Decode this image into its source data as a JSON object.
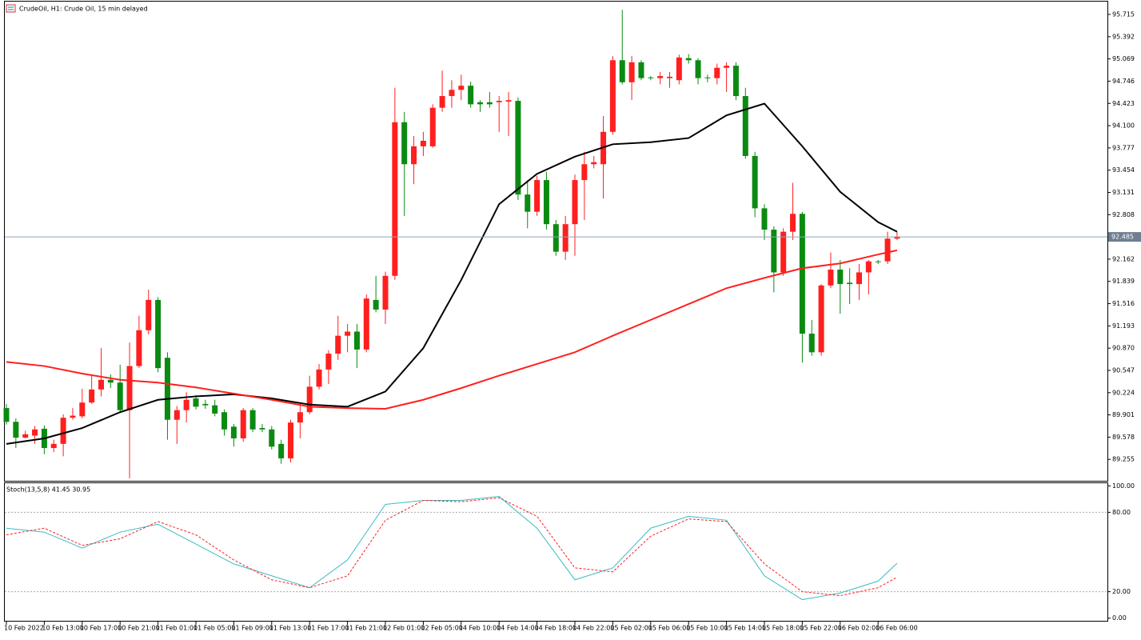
{
  "chart_data": [
    {
      "type": "candlestick",
      "title": "CrudeOil, H1:  Crude Oil, 15 min delayed",
      "categories": [
        "10 Feb 2022",
        null,
        null,
        null,
        "10 Feb 13:00",
        null,
        null,
        null,
        "10 Feb 17:00",
        null,
        null,
        null,
        "10 Feb 21:00",
        null,
        null,
        null,
        "11 Feb 01:00",
        null,
        null,
        null,
        "11 Feb 05:00",
        null,
        null,
        null,
        "11 Feb 09:00",
        null,
        null,
        null,
        "11 Feb 13:00",
        null,
        null,
        null,
        "11 Feb 17:00",
        null,
        null,
        null,
        "11 Feb 21:00",
        null,
        null,
        null,
        "12 Feb 01:00",
        null,
        null,
        null,
        "12 Feb 05:00",
        null,
        null,
        null,
        "14 Feb 10:00",
        null,
        null,
        null,
        "14 Feb 14:00",
        null,
        null,
        null,
        "14 Feb 18:00",
        null,
        null,
        null,
        "14 Feb 22:00",
        null,
        null,
        null,
        "15 Feb 02:00",
        null,
        null,
        null,
        "15 Feb 06:00",
        null,
        null,
        null,
        "15 Feb 10:00",
        null,
        null,
        null,
        "15 Feb 14:00",
        null,
        null,
        null,
        "15 Feb 18:00",
        null,
        null,
        null,
        "15 Feb 22:00",
        null,
        null,
        null,
        "16 Feb 02:00",
        null,
        null,
        null,
        "16 Feb 06:00",
        null,
        null
      ],
      "open": [
        90.0,
        89.8,
        89.57,
        89.6,
        89.7,
        89.42,
        89.48,
        89.86,
        89.88,
        90.08,
        90.27,
        90.41,
        90.37,
        89.97,
        90.61,
        91.13,
        91.57,
        90.73,
        89.83,
        89.97,
        90.14,
        90.06,
        90.04,
        89.94,
        89.73,
        89.56,
        89.97,
        89.71,
        89.69,
        89.48,
        89.27,
        89.79,
        89.94,
        90.31,
        90.56,
        90.79,
        91.05,
        91.11,
        90.85,
        91.57,
        91.43,
        91.92,
        94.15,
        93.54,
        93.8,
        93.8,
        94.36,
        94.53,
        94.62,
        94.68,
        94.44,
        94.44,
        94.44,
        94.45,
        94.46,
        93.1,
        92.85,
        93.31,
        92.67,
        92.27,
        92.67,
        93.31,
        93.54,
        93.54,
        94.01,
        95.05,
        94.73,
        95.02,
        94.8,
        94.79,
        94.79,
        94.76,
        95.08,
        95.05,
        94.8,
        94.79,
        94.94,
        94.97,
        94.53,
        93.66,
        92.9,
        92.59,
        91.97,
        92.56,
        92.82,
        91.08,
        90.81,
        91.78,
        92.01,
        91.82,
        91.8,
        91.97,
        92.13,
        92.13,
        92.46
      ],
      "high": [
        90.06,
        89.85,
        89.67,
        89.74,
        89.75,
        89.54,
        89.91,
        90.0,
        90.28,
        90.47,
        90.87,
        90.49,
        90.63,
        90.95,
        91.34,
        91.72,
        91.61,
        90.81,
        90.03,
        90.23,
        90.19,
        90.12,
        90.12,
        89.98,
        89.77,
        90.0,
        90.0,
        89.77,
        89.74,
        89.54,
        89.83,
        90.06,
        90.47,
        90.64,
        90.84,
        91.34,
        91.22,
        91.22,
        91.65,
        91.92,
        91.98,
        94.65,
        94.3,
        93.95,
        94.01,
        94.41,
        94.9,
        94.76,
        94.84,
        94.74,
        94.47,
        94.59,
        94.53,
        94.59,
        94.51,
        93.31,
        93.37,
        93.43,
        92.73,
        92.79,
        93.39,
        93.72,
        93.66,
        94.24,
        95.11,
        95.78,
        95.11,
        95.05,
        94.82,
        94.88,
        94.88,
        95.13,
        95.14,
        95.08,
        94.84,
        95.0,
        95.02,
        95.02,
        94.65,
        93.72,
        92.96,
        92.64,
        92.61,
        93.27,
        92.85,
        91.28,
        91.8,
        92.26,
        92.15,
        92.03,
        92.09,
        92.15,
        92.15,
        92.56,
        92.56
      ],
      "low": [
        89.76,
        89.42,
        89.56,
        89.48,
        89.33,
        89.36,
        89.3,
        89.83,
        89.85,
        90.06,
        90.17,
        90.29,
        89.94,
        88.98,
        90.58,
        91.07,
        90.52,
        89.54,
        89.48,
        89.79,
        89.98,
        89.99,
        89.88,
        89.6,
        89.44,
        89.51,
        89.65,
        89.65,
        89.4,
        89.19,
        89.21,
        89.56,
        89.91,
        90.27,
        90.35,
        90.7,
        90.81,
        90.58,
        90.81,
        91.39,
        91.22,
        91.86,
        92.79,
        93.25,
        93.66,
        93.78,
        94.3,
        94.36,
        94.47,
        94.36,
        94.3,
        94.36,
        94.01,
        93.95,
        93.02,
        92.61,
        92.79,
        92.59,
        92.21,
        92.15,
        92.21,
        92.73,
        93.48,
        93.04,
        93.97,
        94.7,
        94.47,
        94.76,
        94.76,
        94.7,
        94.65,
        94.7,
        95.0,
        94.7,
        94.73,
        94.7,
        94.59,
        94.47,
        93.62,
        92.77,
        92.44,
        91.68,
        91.92,
        92.44,
        90.66,
        90.76,
        90.76,
        91.74,
        91.37,
        91.51,
        91.57,
        91.65,
        92.09,
        92.09,
        92.44
      ],
      "close": [
        89.8,
        89.57,
        89.62,
        89.69,
        89.42,
        89.48,
        89.86,
        89.89,
        90.08,
        90.27,
        90.41,
        90.37,
        89.97,
        90.61,
        91.13,
        91.57,
        90.58,
        89.83,
        89.97,
        90.12,
        90.02,
        90.04,
        89.92,
        89.69,
        89.56,
        89.97,
        89.69,
        89.69,
        89.44,
        89.27,
        89.79,
        89.94,
        90.31,
        90.56,
        90.79,
        91.05,
        91.11,
        90.85,
        91.59,
        91.43,
        91.92,
        94.15,
        93.54,
        93.8,
        93.88,
        94.36,
        94.53,
        94.62,
        94.68,
        94.41,
        94.41,
        94.41,
        94.46,
        94.47,
        93.1,
        92.85,
        93.31,
        92.67,
        92.27,
        92.67,
        93.31,
        93.54,
        93.57,
        94.01,
        95.05,
        94.73,
        95.02,
        94.79,
        94.79,
        94.82,
        94.81,
        95.09,
        95.05,
        94.79,
        94.79,
        94.94,
        94.97,
        94.53,
        93.66,
        92.9,
        92.59,
        91.97,
        92.56,
        92.82,
        91.08,
        90.81,
        91.78,
        92.01,
        91.8,
        91.8,
        91.97,
        92.13,
        92.12,
        92.46,
        92.49
      ],
      "up_color": "#ff1f1f",
      "down_color": "#0b8a12",
      "lines": [
        {
          "color": "#000000",
          "x": [
            0,
            4,
            8,
            12,
            16,
            20,
            24,
            28,
            32,
            36,
            40,
            44,
            48,
            52,
            56,
            60,
            64,
            68,
            72,
            76,
            80,
            84,
            88,
            92,
            94
          ],
          "values": [
            89.48,
            89.56,
            89.71,
            89.94,
            90.12,
            90.17,
            90.2,
            90.14,
            90.05,
            90.02,
            90.24,
            90.87,
            91.86,
            92.96,
            93.4,
            93.65,
            93.83,
            93.86,
            93.92,
            94.25,
            94.42,
            93.8,
            93.14,
            92.7,
            92.56
          ]
        },
        {
          "color": "#ff1f1f",
          "x": [
            0,
            4,
            8,
            12,
            16,
            20,
            24,
            28,
            32,
            36,
            40,
            44,
            48,
            52,
            56,
            60,
            64,
            68,
            72,
            76,
            80,
            84,
            88,
            92,
            94
          ],
          "values": [
            90.67,
            90.61,
            90.5,
            90.41,
            90.37,
            90.3,
            90.21,
            90.12,
            90.02,
            90.0,
            89.99,
            90.12,
            90.29,
            90.47,
            90.64,
            90.81,
            91.05,
            91.28,
            91.51,
            91.74,
            91.89,
            92.03,
            92.1,
            92.23,
            92.29
          ]
        }
      ],
      "current_price": 92.485,
      "ylim": [
        88.944,
        95.901
      ],
      "yticks": [
        95.715,
        95.392,
        95.069,
        94.746,
        94.423,
        {
          "value": 94.1,
          "label": "94.100"
        },
        93.777,
        93.454,
        93.131,
        92.808,
        92.162,
        91.839,
        91.516,
        91.193,
        {
          "value": 90.87,
          "label": "90.870"
        },
        90.547,
        90.224,
        89.901,
        89.578,
        89.255
      ]
    },
    {
      "type": "line",
      "title": "Stoch(13,5,8) 41.45 30.95",
      "x": [
        0,
        4,
        8,
        12,
        16,
        20,
        24,
        28,
        32,
        36,
        40,
        44,
        48,
        52,
        56,
        60,
        64,
        68,
        72,
        76,
        80,
        84,
        88,
        92,
        94
      ],
      "series": [
        {
          "color": "#3cbcc3",
          "dashed": false,
          "values": [
            68,
            65,
            53,
            65,
            71,
            56,
            41,
            32,
            23,
            44,
            86,
            89,
            89,
            92,
            68,
            29,
            38,
            68,
            77,
            74,
            32,
            14,
            19,
            28,
            41.45
          ]
        },
        {
          "color": "#ff1f1f",
          "dashed": true,
          "values": [
            63,
            68,
            55,
            60,
            73,
            63,
            44,
            29,
            23,
            32,
            74,
            89,
            88,
            91,
            77,
            38,
            35,
            62,
            75,
            73,
            41,
            20,
            17,
            23,
            30.95
          ]
        }
      ],
      "levels": [
        80,
        20
      ],
      "ylim": [
        -2,
        102
      ],
      "yticks": [
        {
          "value": 100,
          "label": "100.00"
        },
        {
          "value": 80,
          "label": "80.00"
        },
        {
          "value": 20,
          "label": "20.00"
        },
        {
          "value": 0,
          "label": "0.00"
        }
      ]
    }
  ]
}
